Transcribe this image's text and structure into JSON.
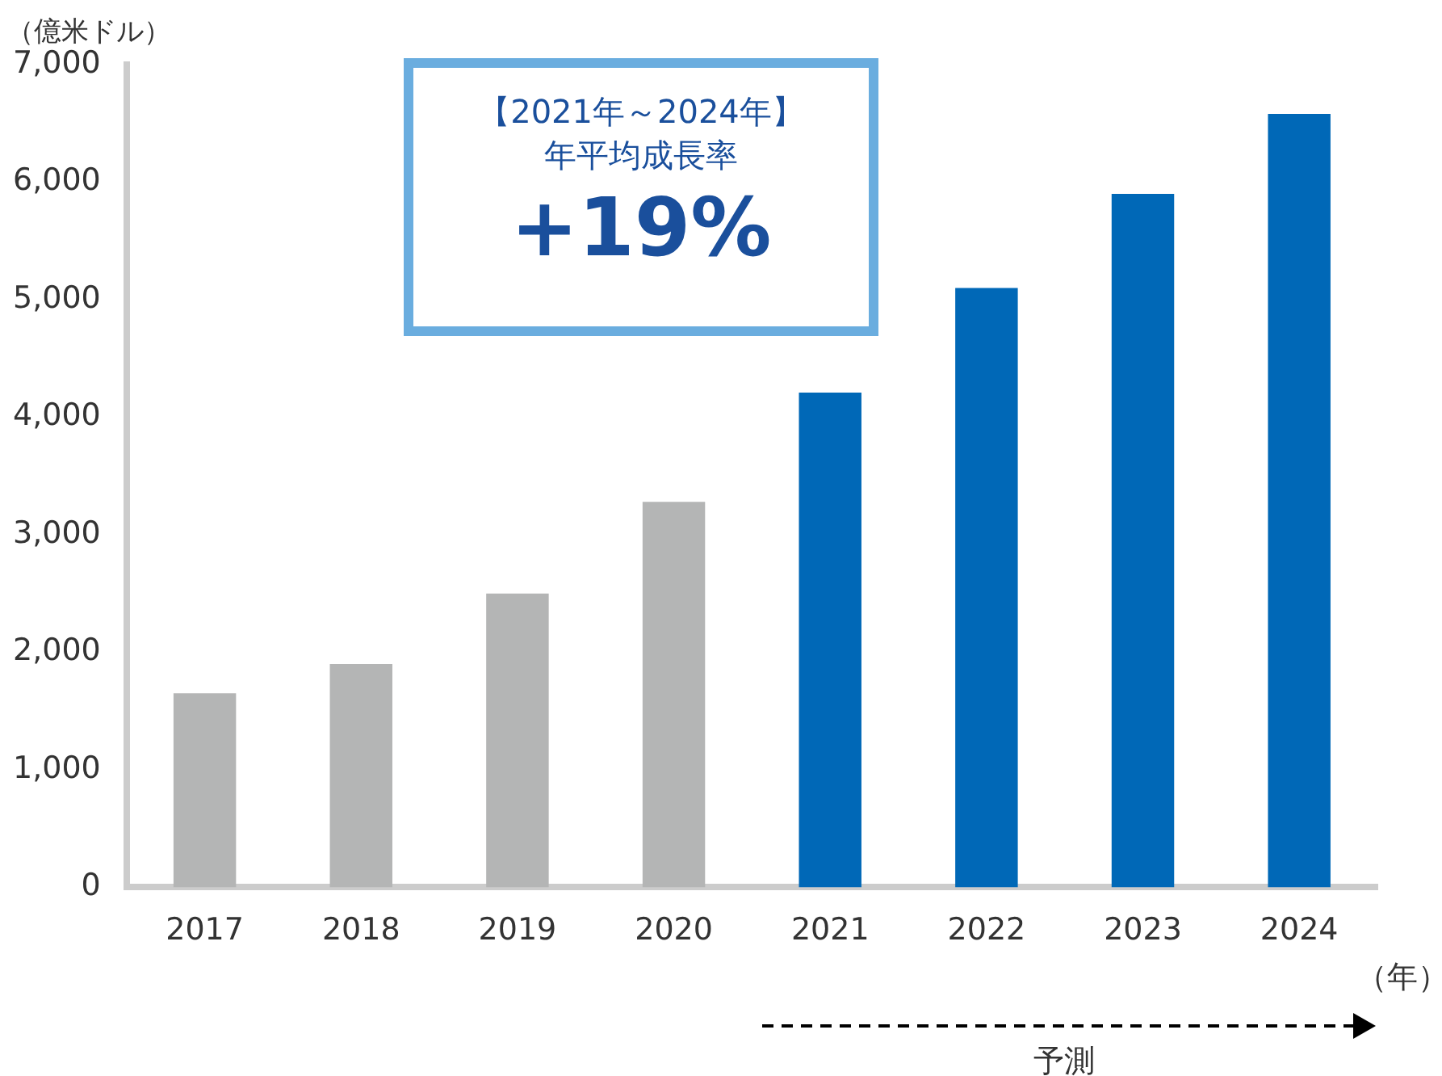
{
  "chart_data": {
    "type": "bar",
    "ylabel": "（億米ドル）",
    "xlabel": "（年）",
    "categories": [
      "2017",
      "2018",
      "2019",
      "2020",
      "2021",
      "2022",
      "2023",
      "2024"
    ],
    "values": [
      1650,
      1900,
      2500,
      3280,
      4210,
      5100,
      5900,
      6580
    ],
    "colors": [
      "#b4b5b5",
      "#b4b5b5",
      "#b4b5b5",
      "#b4b5b5",
      "#0068b7",
      "#0068b7",
      "#0068b7",
      "#0068b7"
    ],
    "ylim": [
      0,
      7000
    ],
    "yticks": [
      0,
      {
        "value": 1000,
        "label": "1,000"
      },
      {
        "value": 2000,
        "label": "2,000"
      },
      {
        "value": 3000,
        "label": "3,000"
      },
      {
        "value": 4000,
        "label": "4,000"
      },
      {
        "value": 5000,
        "label": "5,000"
      },
      {
        "value": 6000,
        "label": "6,000"
      },
      {
        "value": 7000,
        "label": "7,000"
      }
    ],
    "annotations": [
      "【2021年～2024年】",
      "年平均成長率",
      "+19%",
      "予測"
    ]
  }
}
